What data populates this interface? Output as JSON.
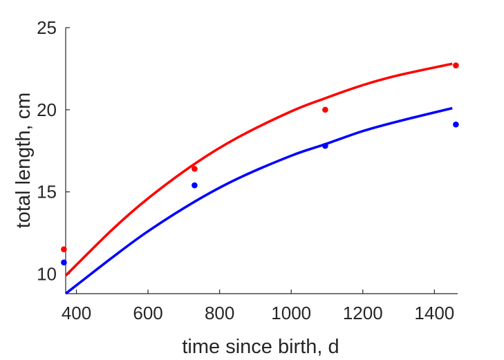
{
  "chart_data": {
    "type": "scatter",
    "title": "",
    "xlabel": "time since birth, d",
    "ylabel": "total length, cm",
    "xlim": [
      370,
      1465
    ],
    "ylim": [
      8.8,
      25
    ],
    "xticks": [
      400,
      600,
      800,
      1000,
      1200,
      1400
    ],
    "yticks": [
      10,
      15,
      20,
      25
    ],
    "grid": false,
    "legend": "none",
    "series": [
      {
        "color": "#ff0000",
        "points": {
          "x": [
            365,
            730,
            1095,
            1460
          ],
          "y": [
            11.5,
            16.4,
            20.0,
            22.7
          ]
        },
        "curve": {
          "x": [
            370,
            500,
            600,
            730,
            850,
            1000,
            1095,
            1200,
            1300,
            1450
          ],
          "y": [
            9.9,
            12.7,
            14.6,
            16.7,
            18.3,
            19.9,
            20.7,
            21.5,
            22.1,
            22.8
          ]
        }
      },
      {
        "color": "#0000ff",
        "points": {
          "x": [
            365,
            730,
            1095,
            1460
          ],
          "y": [
            10.7,
            15.4,
            17.8,
            19.1
          ]
        },
        "curve": {
          "x": [
            370,
            500,
            600,
            730,
            850,
            1000,
            1095,
            1200,
            1300,
            1450
          ],
          "y": [
            8.8,
            11.0,
            12.6,
            14.4,
            15.8,
            17.2,
            17.9,
            18.7,
            19.3,
            20.1
          ]
        }
      }
    ]
  }
}
